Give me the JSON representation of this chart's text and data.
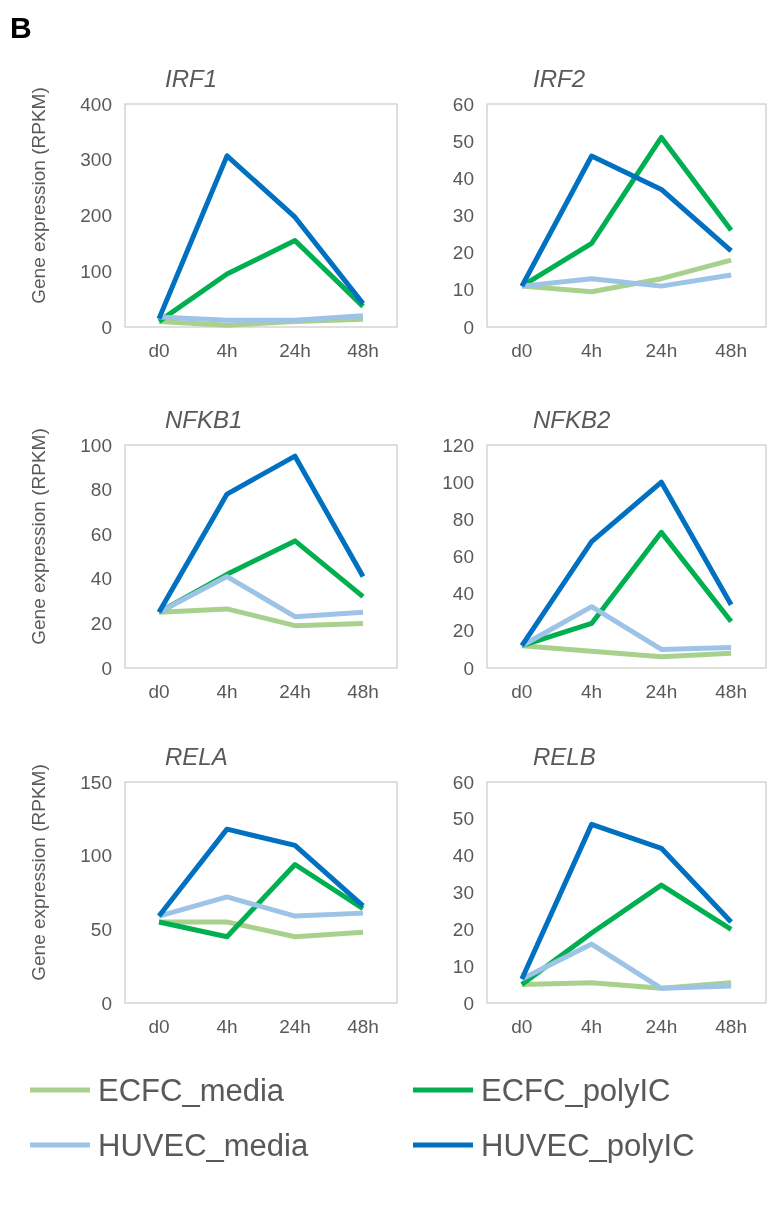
{
  "chart_data": [
    {
      "type": "line",
      "title": "IRF1",
      "ylabel": "Gene expression (RPKM)",
      "annotations": [
        "B"
      ],
      "legend": "bottom",
      "categories": [
        "d0",
        "4h",
        "24h",
        "48h"
      ],
      "ylim": [
        0,
        400
      ],
      "yticks": [
        0,
        100,
        200,
        300,
        400
      ],
      "grid": false,
      "series": [
        {
          "name": "ECFC_media",
          "color": "#a9d18e",
          "values": [
            10,
            3,
            10,
            14
          ]
        },
        {
          "name": "ECFC_polyIC",
          "color": "#00b050",
          "values": [
            10,
            95,
            155,
            37
          ]
        },
        {
          "name": "HUVEC_media",
          "color": "#9dc3e6",
          "values": [
            18,
            12,
            12,
            20
          ]
        },
        {
          "name": "HUVEC_polyIC",
          "color": "#0070c0",
          "values": [
            15,
            307,
            197,
            42
          ]
        }
      ]
    },
    {
      "type": "line",
      "title": "IRF2",
      "categories": [
        "d0",
        "4h",
        "24h",
        "48h"
      ],
      "ylim": [
        0,
        60
      ],
      "yticks": [
        0,
        10,
        20,
        30,
        40,
        50,
        60
      ],
      "grid": false,
      "series": [
        {
          "color": "#a9d18e",
          "values": [
            11,
            9.5,
            13,
            18
          ]
        },
        {
          "color": "#00b050",
          "values": [
            11,
            22.5,
            51,
            26
          ]
        },
        {
          "color": "#9dc3e6",
          "values": [
            11,
            13,
            11,
            14
          ]
        },
        {
          "color": "#0070c0",
          "values": [
            11,
            46,
            37,
            20.5
          ]
        }
      ]
    },
    {
      "type": "line",
      "title": "NFKB1",
      "ylabel": "Gene expression (RPKM)",
      "categories": [
        "d0",
        "4h",
        "24h",
        "48h"
      ],
      "ylim": [
        0,
        100
      ],
      "yticks": [
        0,
        20,
        40,
        60,
        80,
        100
      ],
      "grid": false,
      "series": [
        {
          "color": "#a9d18e",
          "values": [
            25,
            26.5,
            19,
            20
          ]
        },
        {
          "color": "#00b050",
          "values": [
            25,
            42,
            57,
            32
          ]
        },
        {
          "color": "#9dc3e6",
          "values": [
            25,
            41,
            23,
            25
          ]
        },
        {
          "color": "#0070c0",
          "values": [
            25,
            78,
            95,
            41
          ]
        }
      ]
    },
    {
      "type": "line",
      "title": "NFKB2",
      "categories": [
        "d0",
        "4h",
        "24h",
        "48h"
      ],
      "ylim": [
        0,
        120
      ],
      "yticks": [
        0,
        20,
        40,
        60,
        80,
        100,
        120
      ],
      "grid": false,
      "series": [
        {
          "color": "#a9d18e",
          "values": [
            12,
            9,
            6,
            8
          ]
        },
        {
          "color": "#00b050",
          "values": [
            12,
            24,
            73,
            25
          ]
        },
        {
          "color": "#9dc3e6",
          "values": [
            12,
            33,
            10,
            11
          ]
        },
        {
          "color": "#0070c0",
          "values": [
            12,
            68,
            100,
            34
          ]
        }
      ]
    },
    {
      "type": "line",
      "title": "RELA",
      "ylabel": "Gene expression (RPKM)",
      "categories": [
        "d0",
        "4h",
        "24h",
        "48h"
      ],
      "ylim": [
        0,
        150
      ],
      "yticks": [
        0,
        50,
        100,
        150
      ],
      "grid": false,
      "series": [
        {
          "color": "#a9d18e",
          "values": [
            55,
            55,
            45,
            48
          ]
        },
        {
          "color": "#00b050",
          "values": [
            55,
            45,
            94,
            64
          ]
        },
        {
          "color": "#9dc3e6",
          "values": [
            59,
            72,
            59,
            61
          ]
        },
        {
          "color": "#0070c0",
          "values": [
            59,
            118,
            107,
            66
          ]
        }
      ]
    },
    {
      "type": "line",
      "title": "RELB",
      "categories": [
        "d0",
        "4h",
        "24h",
        "48h"
      ],
      "ylim": [
        0,
        60
      ],
      "yticks": [
        0,
        10,
        20,
        30,
        40,
        50,
        60
      ],
      "grid": false,
      "series": [
        {
          "color": "#a9d18e",
          "values": [
            5,
            5.5,
            4,
            5.5
          ]
        },
        {
          "color": "#00b050",
          "values": [
            5,
            19,
            32,
            20
          ]
        },
        {
          "color": "#9dc3e6",
          "values": [
            6.5,
            16,
            4,
            4.6
          ]
        },
        {
          "color": "#0070c0",
          "values": [
            6.5,
            48.5,
            42,
            22
          ]
        }
      ]
    }
  ]
}
